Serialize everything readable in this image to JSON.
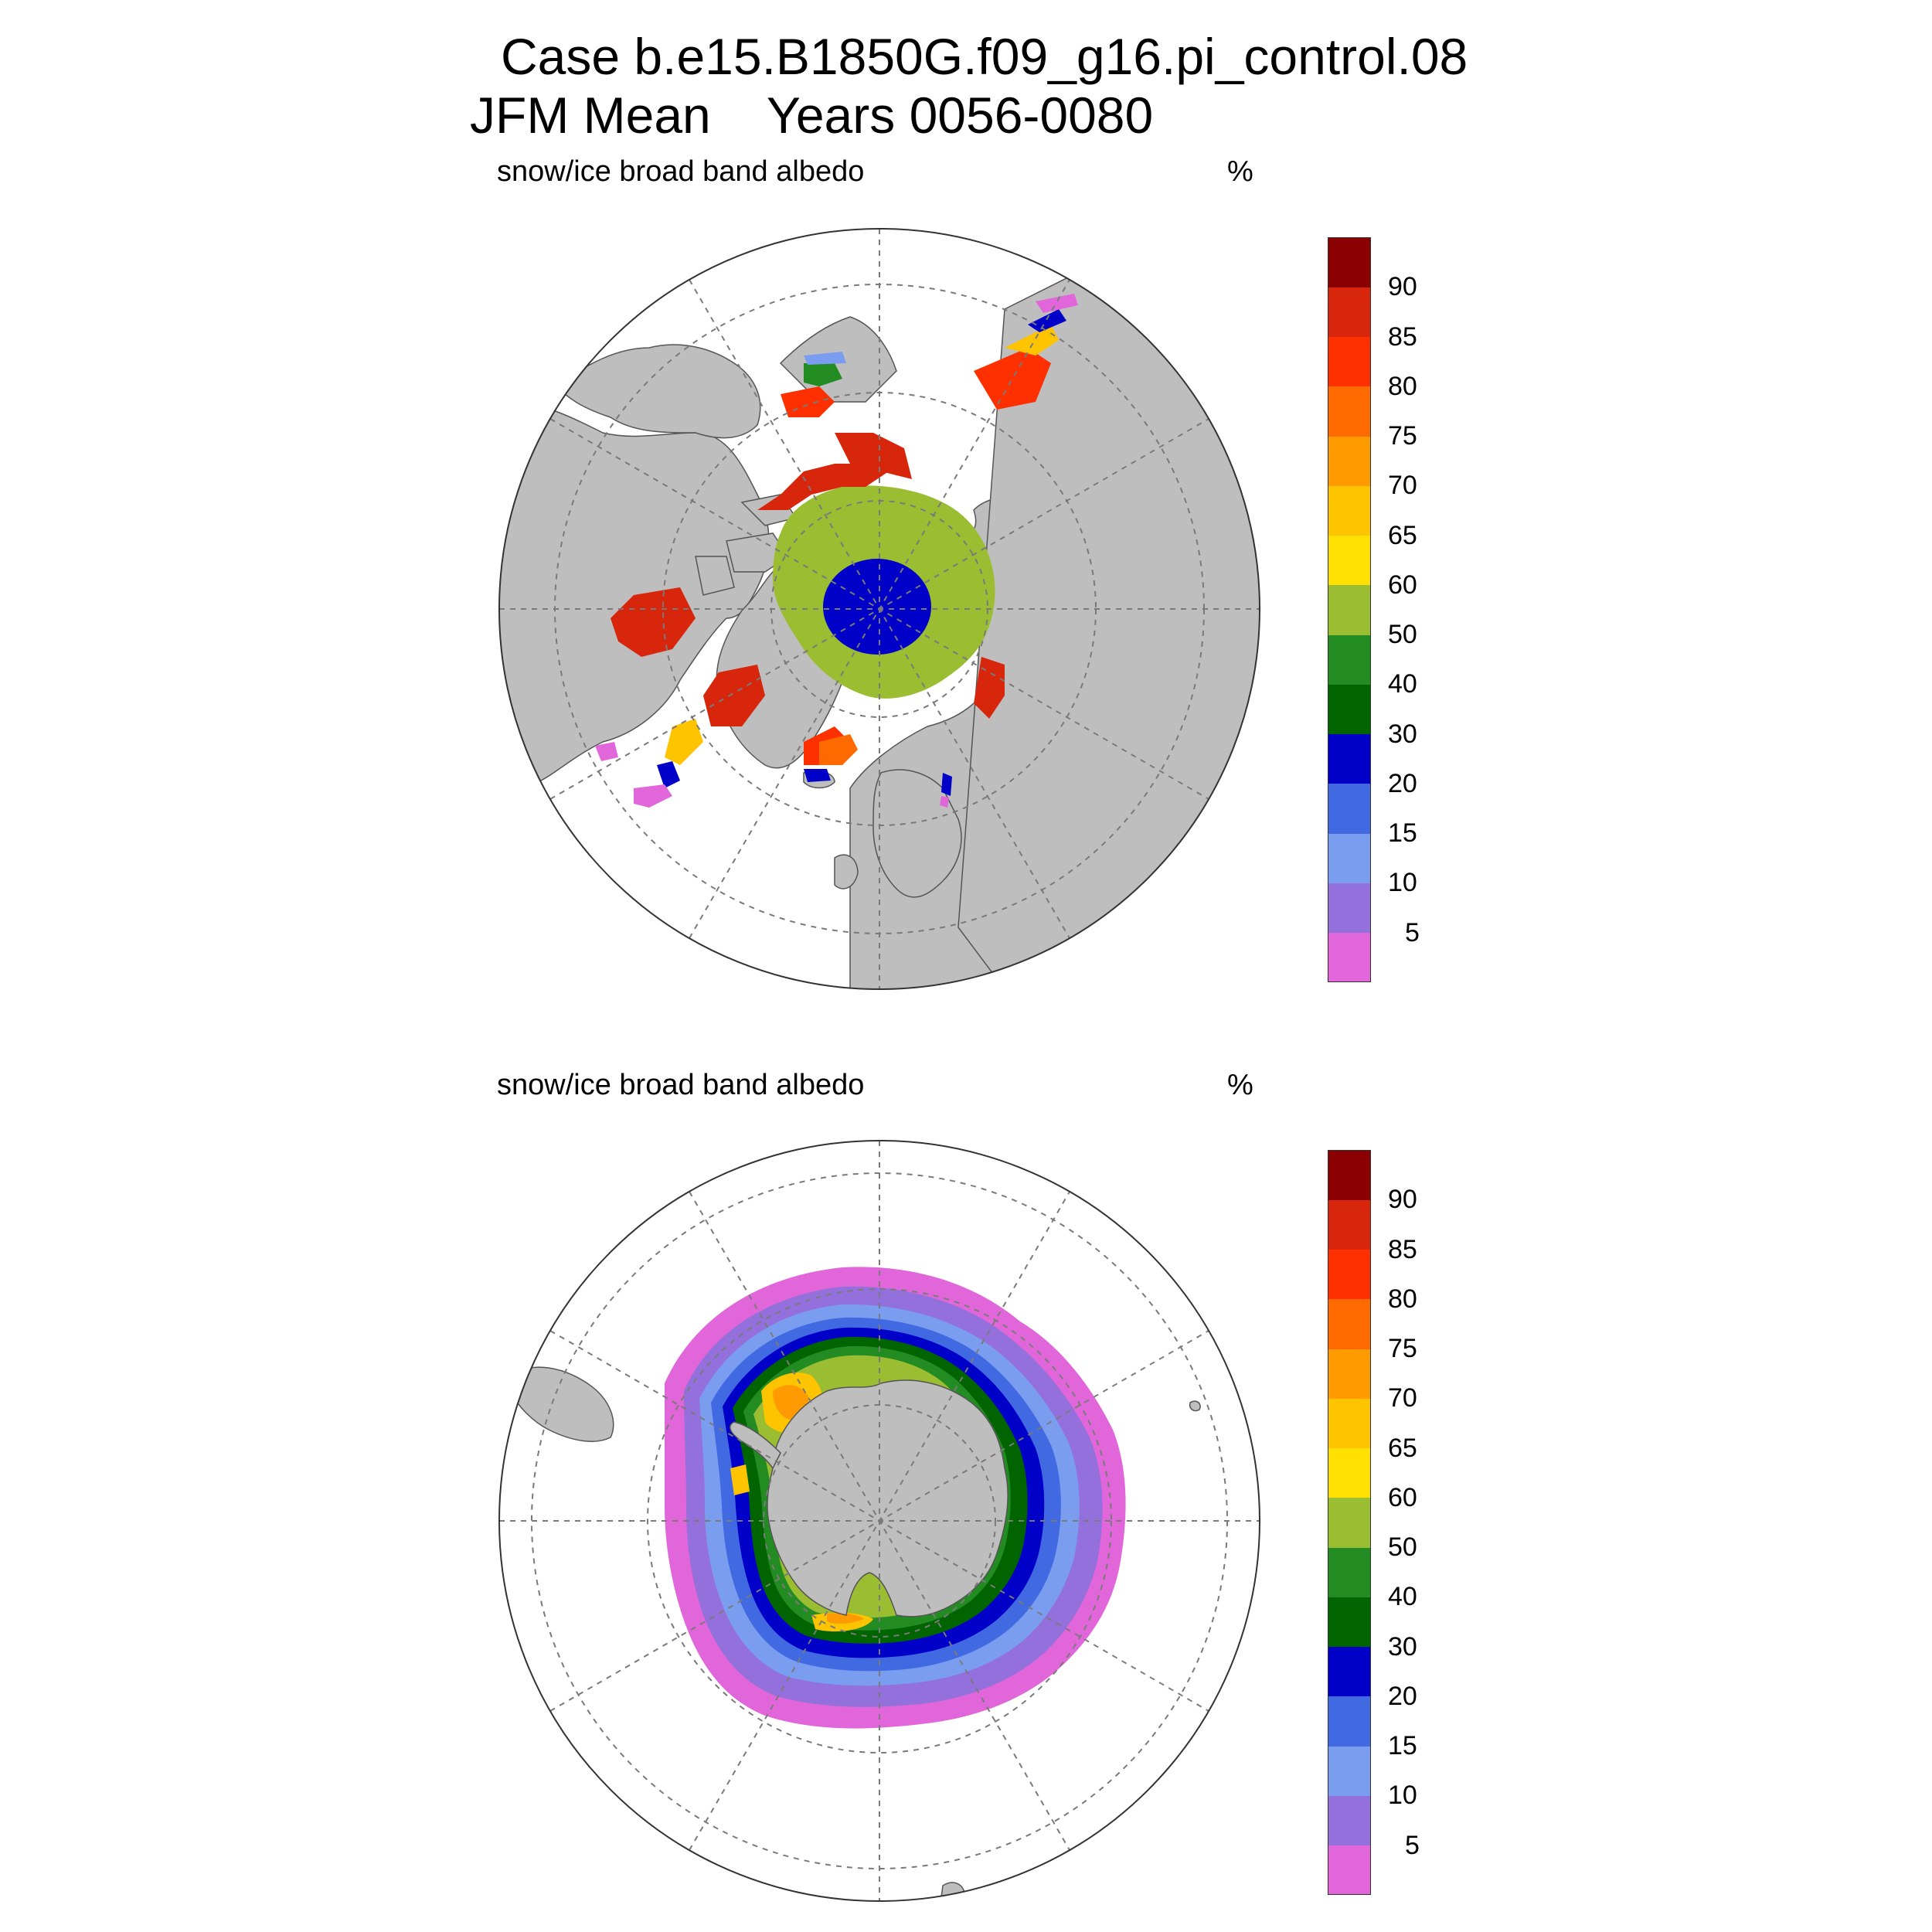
{
  "title": {
    "line1": "Case b.e15.B1850G.f09_g16.pi_control.08",
    "line2": "JFM Mean    Years 0056-0080"
  },
  "panels": [
    {
      "id": "north",
      "variable_label": "snow/ice broad band albedo",
      "units_label": "%",
      "hemisphere": "north"
    },
    {
      "id": "south",
      "variable_label": "snow/ice broad band albedo",
      "units_label": "%",
      "hemisphere": "south"
    }
  ],
  "colorbar": {
    "colors": [
      "#e066d9",
      "#9370db",
      "#7b9df0",
      "#4169e1",
      "#0000c8",
      "#006400",
      "#228b22",
      "#9abd32",
      "#ffe000",
      "#ffc400",
      "#ff9a00",
      "#ff6a00",
      "#ff3000",
      "#d8260c",
      "#8b0000"
    ],
    "tick_labels": [
      "5",
      "10",
      "15",
      "20",
      "30",
      "40",
      "50",
      "60",
      "65",
      "70",
      "75",
      "80",
      "85",
      "90"
    ]
  },
  "style_colors": {
    "land": "#bebebe",
    "ocean": "#ffffff",
    "grid": "#7a7a7a"
  }
}
